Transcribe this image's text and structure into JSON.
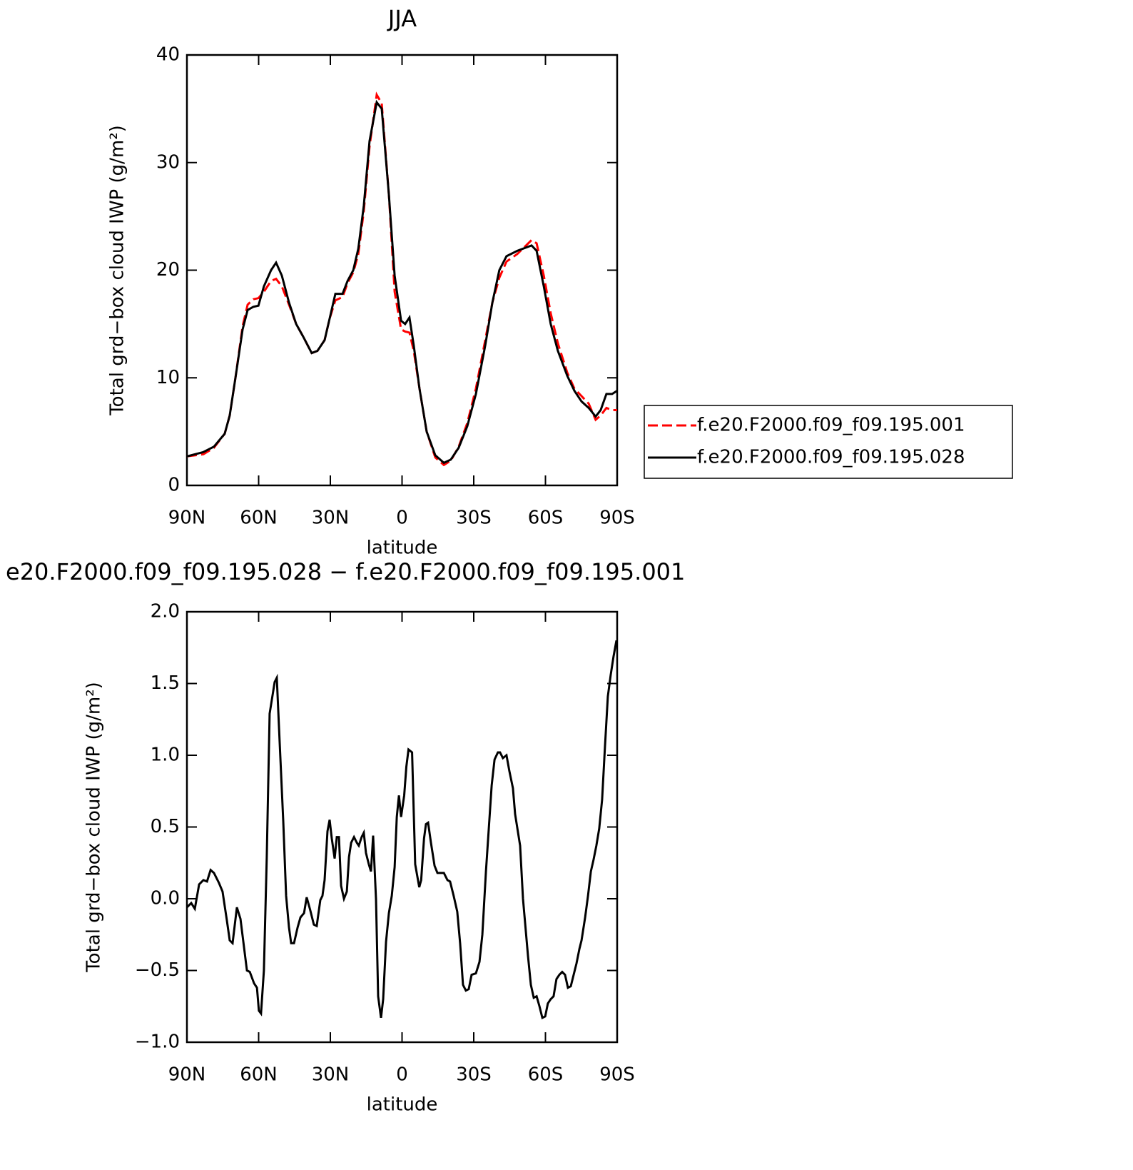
{
  "chart_data": [
    {
      "type": "line",
      "title": "JJA",
      "xlabel": "latitude",
      "ylabel": "Total grd−box cloud IWP (g/m²)",
      "x": [
        90,
        83.1,
        78.7,
        74.2,
        72.1,
        69.7,
        66.7,
        64.6,
        62.2,
        60.1,
        57.8,
        54.8,
        52.7,
        50.3,
        47.3,
        44.3,
        41.3,
        37.8,
        35.4,
        32.4,
        30.3,
        27.9,
        24.9,
        22.8,
        20.4,
        18.3,
        16,
        13.6,
        10.6,
        8.5,
        5.5,
        3.1,
        0.4,
        -1.3,
        -3.1,
        -4.9,
        -7.3,
        -10.3,
        -13.9,
        -17.5,
        -20.4,
        -23.7,
        -27.3,
        -30.9,
        -34.8,
        -37.8,
        -40.7,
        -43.7,
        -48.2,
        -54.2,
        -56.3,
        -59.3,
        -62.2,
        -65.2,
        -69.1,
        -72.1,
        -75.1,
        -78.1,
        -81,
        -83.1,
        -85.5,
        -87.9,
        -90
      ],
      "series": [
        {
          "name": "f.e20.F2000.f09_f09.195.001",
          "color": "#ff0000",
          "linestyle": "dashed",
          "values": [
            2.7,
            2.9,
            3.5,
            4.8,
            6.5,
            10,
            14.8,
            16.8,
            17.3,
            17.4,
            18,
            19,
            19.2,
            18.5,
            16.8,
            15,
            13.8,
            12.3,
            12.5,
            13.5,
            15.5,
            17.2,
            17.5,
            18.8,
            19.8,
            21.5,
            25.5,
            31.5,
            36.3,
            35.5,
            27,
            18,
            14.5,
            14.3,
            14.2,
            12.5,
            9,
            5,
            2.6,
            1.9,
            2.3,
            3.6,
            5.8,
            9,
            13.5,
            17,
            19.3,
            20.8,
            21.5,
            22.8,
            22.5,
            19.5,
            16,
            13.2,
            10.5,
            9,
            8.3,
            7.6,
            6.1,
            6.5,
            7.2,
            7,
            7
          ]
        },
        {
          "name": "f.e20.F2000.f09_f09.195.028",
          "color": "#000000",
          "linestyle": "solid",
          "values": [
            2.7,
            3.1,
            3.6,
            4.8,
            6.5,
            10,
            14.5,
            16.3,
            16.6,
            16.7,
            18.5,
            20,
            20.7,
            19.5,
            17,
            15,
            13.8,
            12.3,
            12.5,
            13.5,
            15.5,
            17.8,
            17.8,
            19,
            20,
            22,
            26,
            32,
            35.6,
            35,
            27,
            19.5,
            15.3,
            15,
            15.6,
            13,
            9,
            5,
            2.8,
            2.1,
            2.4,
            3.5,
            5.5,
            8.5,
            13,
            17,
            20,
            21.3,
            21.8,
            22.3,
            21.8,
            18.5,
            15,
            12.5,
            10.2,
            8.8,
            7.8,
            7.2,
            6.4,
            7,
            8.5,
            8.5,
            8.8
          ]
        }
      ],
      "xlim": [
        90,
        -90
      ],
      "xticks": [
        {
          "value": 90,
          "label": "90N"
        },
        {
          "value": 60,
          "label": "60N"
        },
        {
          "value": 30,
          "label": "30N"
        },
        0,
        {
          "value": -30,
          "label": "30S"
        },
        {
          "value": -60,
          "label": "60S"
        },
        {
          "value": -90,
          "label": "90S"
        }
      ],
      "ylim": [
        0,
        40
      ],
      "yticks": [
        0,
        10,
        20,
        30,
        40
      ],
      "legend": "right"
    },
    {
      "type": "line",
      "title": "e20.F2000.f09_f09.195.028 − f.e20.F2000.f09_f09.195.001",
      "xlabel": "latitude",
      "ylabel": "Total grd−box cloud IWP (g/m²)",
      "x": [
        90,
        88.2,
        86.7,
        84.9,
        83.1,
        81.6,
        80.1,
        78.7,
        76.6,
        75.1,
        73.3,
        72.1,
        70.9,
        69.1,
        67.6,
        66.4,
        64.9,
        63.7,
        61.9,
        60.7,
        59.9,
        59,
        57.8,
        56.6,
        55.4,
        53.3,
        52.4,
        51.2,
        49.7,
        48.5,
        47.3,
        46.4,
        45.2,
        43.7,
        42.5,
        41,
        39.9,
        38.4,
        36.9,
        35.7,
        34.2,
        33.3,
        32.4,
        31.2,
        30.3,
        29.4,
        28.2,
        27.3,
        26.4,
        25.5,
        24.3,
        23.1,
        22.2,
        21.3,
        20.1,
        18.9,
        18.1,
        16.9,
        16,
        15.1,
        13.9,
        13,
        12.1,
        10.9,
        10,
        8.8,
        7.9,
        6.7,
        5.5,
        4.3,
        3.1,
        2.2,
        1.3,
        0.4,
        -0.9,
        -1.8,
        -2.7,
        -4.2,
        -5.5,
        -7.2,
        -8,
        -9.2,
        -10,
        -10.9,
        -12.1,
        -13.6,
        -14.8,
        -16,
        -17.5,
        -19,
        -20.1,
        -21.6,
        -23.1,
        -24.3,
        -25.5,
        -26.7,
        -27.9,
        -29.1,
        -30.9,
        -32.4,
        -33.6,
        -35.1,
        -36.3,
        -37.5,
        -38.7,
        -40.1,
        -41,
        -42.2,
        -43.7,
        -44.9,
        -46.4,
        -47.3,
        -49.4,
        -50.6,
        -52.7,
        -53.9,
        -55.1,
        -56.3,
        -57.5,
        -58.7,
        -59.9,
        -61,
        -62.2,
        -63.4,
        -64.6,
        -65.8,
        -67,
        -68.2,
        -69.4,
        -70.6,
        -71.8,
        -73,
        -74.2,
        -75.1,
        -76.6,
        -77.8,
        -79,
        -80.1,
        -81.3,
        -82.5,
        -83.7,
        -84.9,
        -86.1,
        -87.3,
        -88.5,
        -89.7
      ],
      "series": [
        {
          "name": null,
          "color": "#000000",
          "linestyle": "solid",
          "values": [
            -0.06,
            -0.03,
            -0.07,
            0.1,
            0.13,
            0.12,
            0.2,
            0.18,
            0.11,
            0.05,
            -0.15,
            -0.29,
            -0.31,
            -0.06,
            -0.14,
            -0.3,
            -0.5,
            -0.51,
            -0.59,
            -0.62,
            -0.78,
            -0.8,
            -0.5,
            0.29,
            1.29,
            1.51,
            1.54,
            1.09,
            0.54,
            0.02,
            -0.2,
            -0.31,
            -0.31,
            -0.2,
            -0.13,
            -0.1,
            0.01,
            -0.08,
            -0.18,
            -0.19,
            -0.01,
            0.02,
            0.13,
            0.47,
            0.55,
            0.42,
            0.28,
            0.43,
            0.43,
            0.09,
            0,
            0.05,
            0.29,
            0.39,
            0.43,
            0.39,
            0.37,
            0.43,
            0.46,
            0.32,
            0.24,
            0.19,
            0.44,
            0,
            -0.68,
            -0.83,
            -0.7,
            -0.3,
            -0.1,
            0.02,
            0.22,
            0.57,
            0.72,
            0.57,
            0.72,
            0.92,
            1.04,
            1.02,
            0.24,
            0.08,
            0.13,
            0.42,
            0.52,
            0.53,
            0.39,
            0.23,
            0.18,
            0.18,
            0.18,
            0.13,
            0.12,
            0.02,
            -0.09,
            -0.31,
            -0.6,
            -0.64,
            -0.63,
            -0.53,
            -0.52,
            -0.44,
            -0.25,
            0.19,
            0.49,
            0.79,
            0.97,
            1.02,
            1.02,
            0.98,
            1,
            0.89,
            0.77,
            0.59,
            0.37,
            0,
            -0.4,
            -0.6,
            -0.69,
            -0.68,
            -0.75,
            -0.83,
            -0.82,
            -0.73,
            -0.7,
            -0.68,
            -0.56,
            -0.53,
            -0.51,
            -0.53,
            -0.62,
            -0.61,
            -0.53,
            -0.45,
            -0.35,
            -0.29,
            -0.13,
            0.02,
            0.19,
            0.27,
            0.37,
            0.49,
            0.69,
            1.06,
            1.41,
            1.56,
            1.69,
            1.8
          ]
        }
      ],
      "xlim": [
        90,
        -90
      ],
      "xticks": [
        {
          "value": 90,
          "label": "90N"
        },
        {
          "value": 60,
          "label": "60N"
        },
        {
          "value": 30,
          "label": "30N"
        },
        0,
        {
          "value": -30,
          "label": "30S"
        },
        {
          "value": -60,
          "label": "60S"
        },
        {
          "value": -90,
          "label": "90S"
        }
      ],
      "ylim": [
        -1,
        2
      ],
      "yticks": [
        {
          "value": -1,
          "label": "−1.0"
        },
        {
          "value": -0.5,
          "label": "−0.5"
        },
        {
          "value": 0,
          "label": "0.0"
        },
        0.5,
        {
          "value": 1,
          "label": "1.0"
        },
        1.5,
        {
          "value": 2,
          "label": "2.0"
        }
      ]
    }
  ]
}
